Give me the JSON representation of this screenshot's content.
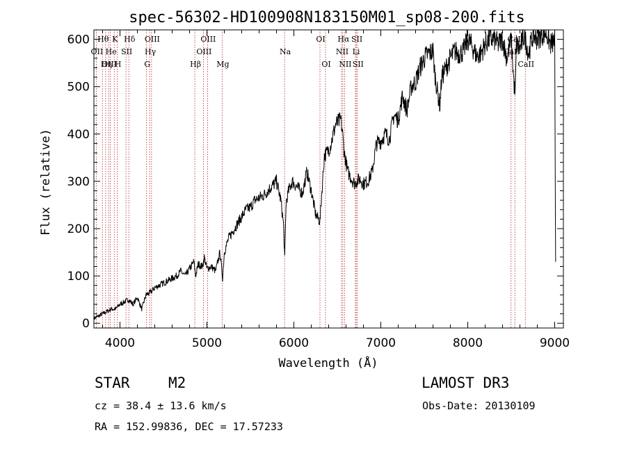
{
  "chart_data": {
    "type": "line",
    "title": "spec-56302-HD100908N183150M01_sp08-200.fits",
    "xlabel": "Wavelength (Å)",
    "ylabel": "Flux (relative)",
    "xlim": [
      3700,
      9100
    ],
    "ylim": [
      -10,
      620
    ],
    "x_ticks": [
      4000,
      5000,
      6000,
      7000,
      8000,
      9000
    ],
    "y_ticks": [
      0,
      100,
      200,
      300,
      400,
      500,
      600
    ],
    "series": [
      {
        "name": "flux",
        "x": [
          3700,
          3750,
          3800,
          3850,
          3900,
          3950,
          4000,
          4050,
          4100,
          4150,
          4200,
          4250,
          4300,
          4350,
          4400,
          4450,
          4500,
          4550,
          4600,
          4650,
          4700,
          4750,
          4800,
          4850,
          4870,
          4900,
          4950,
          4970,
          5000,
          5050,
          5100,
          5150,
          5180,
          5200,
          5250,
          5300,
          5350,
          5400,
          5450,
          5500,
          5550,
          5600,
          5650,
          5700,
          5750,
          5800,
          5850,
          5880,
          5895,
          5910,
          5940,
          5980,
          6050,
          6100,
          6150,
          6200,
          6250,
          6300,
          6330,
          6350,
          6380,
          6420,
          6480,
          6540,
          6563,
          6580,
          6620,
          6680,
          6700,
          6720,
          6760,
          6800,
          6850,
          6900,
          6950,
          7000,
          7050,
          7100,
          7150,
          7200,
          7250,
          7300,
          7350,
          7400,
          7450,
          7500,
          7550,
          7600,
          7620,
          7650,
          7680,
          7700,
          7750,
          7800,
          7850,
          7900,
          7950,
          8000,
          8050,
          8100,
          8150,
          8200,
          8250,
          8300,
          8350,
          8400,
          8450,
          8500,
          8530,
          8545,
          8560,
          8600,
          8650,
          8700,
          8750,
          8800,
          8850,
          8900,
          8950,
          9000,
          9010
        ],
        "values": [
          10,
          15,
          20,
          25,
          30,
          30,
          40,
          45,
          50,
          40,
          55,
          30,
          60,
          65,
          75,
          80,
          85,
          90,
          95,
          100,
          110,
          100,
          115,
          130,
          100,
          125,
          120,
          140,
          115,
          120,
          110,
          150,
          95,
          150,
          180,
          195,
          210,
          225,
          240,
          245,
          260,
          265,
          270,
          280,
          290,
          300,
          260,
          210,
          135,
          255,
          280,
          300,
          285,
          275,
          320,
          280,
          230,
          215,
          300,
          355,
          360,
          375,
          420,
          430,
          395,
          360,
          320,
          300,
          295,
          300,
          305,
          295,
          300,
          320,
          380,
          385,
          400,
          390,
          440,
          430,
          480,
          450,
          500,
          510,
          540,
          560,
          570,
          575,
          530,
          490,
          460,
          520,
          540,
          560,
          575,
          570,
          575,
          600,
          585,
          565,
          570,
          590,
          600,
          600,
          590,
          600,
          560,
          600,
          510,
          480,
          590,
          580,
          610,
          570,
          610,
          600,
          610,
          615,
          590,
          595,
          130
        ]
      }
    ],
    "spectral_lines": [
      {
        "label": "Hθ",
        "row": 0,
        "x": 3798
      },
      {
        "label": "OII",
        "row": 1,
        "x": 3727
      },
      {
        "label": "OIII",
        "row": 2,
        "x": 3869
      },
      {
        "label": "He",
        "row": 1,
        "x": 3889
      },
      {
        "label": "Hη",
        "row": 2,
        "x": 3835
      },
      {
        "label": "K",
        "row": 0,
        "x": 3934
      },
      {
        "label": "SII",
        "row": 1,
        "x": 4069
      },
      {
        "label": "H",
        "row": 2,
        "x": 3968
      },
      {
        "label": "Hδ",
        "row": 0,
        "x": 4102
      },
      {
        "label": "OIII",
        "row": 0,
        "x": 4363
      },
      {
        "label": "Hγ",
        "row": 1,
        "x": 4341
      },
      {
        "label": "G",
        "row": 2,
        "x": 4305
      },
      {
        "label": "Hβ",
        "row": 2,
        "x": 4861
      },
      {
        "label": "OIII",
        "row": 0,
        "x": 5007
      },
      {
        "label": "OIII",
        "row": 1,
        "x": 4959
      },
      {
        "label": "Mg",
        "row": 2,
        "x": 5175
      },
      {
        "label": "Na",
        "row": 1,
        "x": 5893
      },
      {
        "label": "OI",
        "row": 0,
        "x": 6300
      },
      {
        "label": "OI",
        "row": 2,
        "x": 6364
      },
      {
        "label": "Hα",
        "row": 0,
        "x": 6563
      },
      {
        "label": "NII",
        "row": 1,
        "x": 6548
      },
      {
        "label": "NII",
        "row": 2,
        "x": 6583
      },
      {
        "label": "SII",
        "row": 0,
        "x": 6717
      },
      {
        "label": "Li",
        "row": 1,
        "x": 6708
      },
      {
        "label": "SII",
        "row": 2,
        "x": 6731
      },
      {
        "label": "CaII",
        "row": 0,
        "x": 8542
      },
      {
        "label": "CaII",
        "row": 1,
        "x": 8498
      },
      {
        "label": "CaII",
        "row": 2,
        "x": 8662
      }
    ]
  },
  "info": {
    "object_class": "STAR",
    "subclass": "M2",
    "survey": "LAMOST DR3",
    "cz": "cz = 38.4 ± 13.6 km/s",
    "obs_date": "Obs-Date: 20130109",
    "coords": "RA = 152.99836, DEC =  17.57233"
  },
  "colors": {
    "line": "#000000",
    "spectral_line": "#b22222",
    "axis": "#000000"
  }
}
